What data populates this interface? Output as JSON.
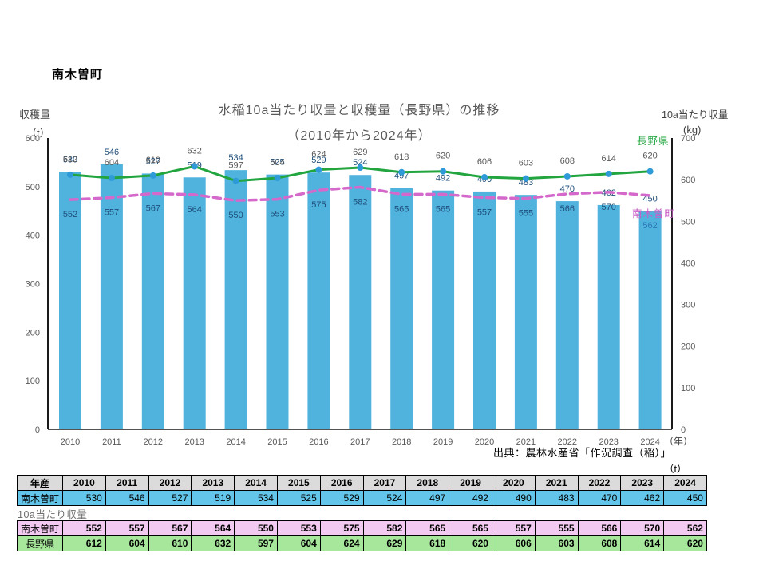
{
  "page_title": "南木曽町",
  "source_note": "出典：農林水産省「作況調査（稲）」",
  "table_unit_label": "（t）",
  "chart_data": {
    "type": "combo-bar-line",
    "title_line1": "水稲10a当たり収量と収穫量（長野県）の推移",
    "title_line2": "（2010年から2024年）",
    "categories": [
      "2010",
      "2011",
      "2012",
      "2013",
      "2014",
      "2015",
      "2016",
      "2017",
      "2018",
      "2019",
      "2020",
      "2021",
      "2022",
      "2023",
      "2024"
    ],
    "x_suffix": "（年）",
    "left_axis": {
      "title": "収穫量",
      "unit": "（t）",
      "max": 600,
      "ticks": [
        600,
        500,
        400,
        300,
        200,
        100,
        0
      ]
    },
    "right_axis": {
      "title": "10a当たり収量",
      "unit": "(kg)",
      "max": 700,
      "ticks": [
        700,
        600,
        500,
        400,
        300,
        200,
        100,
        0
      ]
    },
    "grid": false,
    "legend_position": "end-of-line",
    "series": [
      {
        "name": "南木曽町",
        "kind": "bar",
        "axis": "left",
        "unit": "t",
        "color": "#4FB3DE",
        "label_color": "#1F4E79",
        "values": [
          530,
          546,
          527,
          519,
          534,
          525,
          529,
          524,
          497,
          492,
          490,
          483,
          470,
          462,
          450
        ]
      },
      {
        "name": "南木曽町",
        "kind": "dashed-line",
        "axis": "right",
        "unit": "kg",
        "color": "#D468CB",
        "label_color": "#1F4E79",
        "last_label_color": "#2E75B6",
        "values": [
          552,
          557,
          567,
          564,
          550,
          553,
          575,
          582,
          565,
          565,
          557,
          555,
          566,
          570,
          562
        ]
      },
      {
        "name": "長野県",
        "kind": "line",
        "axis": "right",
        "unit": "kg",
        "color": "#22A53F",
        "marker_color": "#2E9BD8",
        "label_color": "#595959",
        "values": [
          612,
          604,
          610,
          632,
          597,
          604,
          624,
          629,
          618,
          620,
          606,
          603,
          608,
          614,
          620
        ]
      }
    ],
    "legend": [
      {
        "text": "長野県",
        "color": "#22A53F"
      },
      {
        "text": "南木曽町",
        "color": "#C95EC5"
      }
    ]
  },
  "table": {
    "corner_label": "年産",
    "header_bg": "#DBDBDB",
    "years": [
      "2010",
      "2011",
      "2012",
      "2013",
      "2014",
      "2015",
      "2016",
      "2017",
      "2018",
      "2019",
      "2020",
      "2021",
      "2022",
      "2023",
      "2024"
    ],
    "harvest_row": {
      "label": "南木曽町",
      "bg": "#63C5E9",
      "values": [
        530,
        546,
        527,
        519,
        534,
        525,
        529,
        524,
        497,
        492,
        490,
        483,
        470,
        462,
        450
      ]
    },
    "section_label": "10a当たり収量",
    "yield_rows": [
      {
        "label": "南木曽町",
        "bg": "#F2C9F0",
        "values": [
          552,
          557,
          567,
          564,
          550,
          553,
          575,
          582,
          565,
          565,
          557,
          555,
          566,
          570,
          562
        ]
      },
      {
        "label": "長野県",
        "bg": "#A7E79C",
        "values": [
          612,
          604,
          610,
          632,
          597,
          604,
          624,
          629,
          618,
          620,
          606,
          603,
          608,
          614,
          620
        ]
      }
    ]
  }
}
